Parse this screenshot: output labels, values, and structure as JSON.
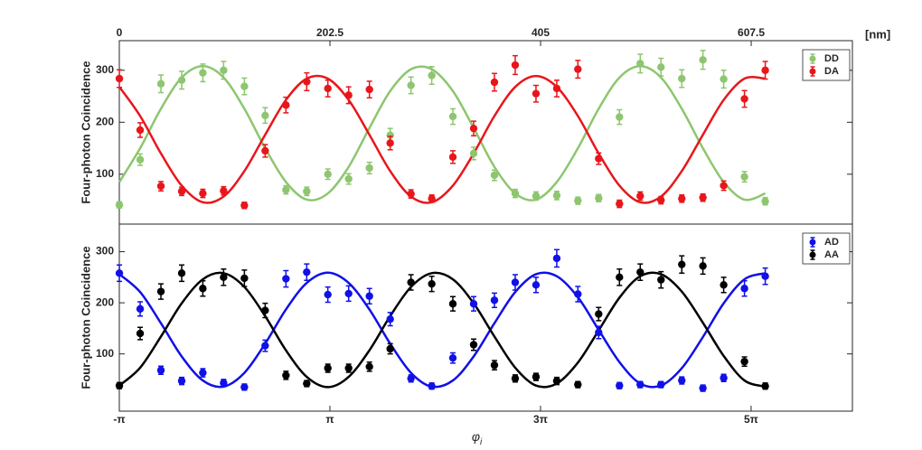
{
  "chart_data": [
    {
      "type": "scatter",
      "ylabel": "Four-photon Coincidence",
      "x": [
        -3.14,
        -2.52,
        -1.9,
        -1.28,
        -0.65,
        -0.03,
        0.59,
        1.21,
        1.83,
        2.45,
        3.08,
        3.7,
        4.32,
        4.94,
        5.56,
        6.18,
        6.81,
        7.43,
        8.05,
        8.67,
        9.29,
        9.91,
        10.54,
        11.16,
        11.78,
        12.4,
        13.02,
        13.64,
        14.27,
        14.89,
        15.51,
        16.13
      ],
      "xlim": [
        -3.1416,
        18.73
      ],
      "x2lim": [
        0,
        704.8
      ],
      "x2ticks": [
        0,
        202.5,
        405,
        607.5
      ],
      "x2label": "[nm]",
      "ylim": [
        4,
        357
      ],
      "yticks": [
        100,
        200,
        300
      ],
      "legend": "upper right",
      "series": [
        {
          "name": "DD",
          "color": "#8dc66f",
          "values": [
            41,
            128,
            274,
            281,
            295,
            300,
            269,
            213,
            70,
            67,
            100,
            91,
            112,
            175,
            271,
            290,
            211,
            140,
            98,
            63,
            58,
            59,
            49,
            54,
            210,
            313,
            306,
            284,
            320,
            283,
            95,
            48
          ],
          "errors": [
            6,
            11,
            17,
            17,
            17,
            17,
            16,
            15,
            8,
            8,
            10,
            10,
            11,
            13,
            16,
            17,
            15,
            12,
            10,
            8,
            8,
            8,
            7,
            7,
            14,
            18,
            17,
            17,
            18,
            17,
            10,
            7
          ],
          "fit": [
            85,
            150,
            226,
            286,
            308,
            286,
            226,
            150,
            85,
            51,
            63,
            114,
            189,
            260,
            302,
            302,
            260,
            189,
            114,
            63,
            51,
            85,
            150,
            226,
            286,
            308,
            286,
            226,
            150,
            85,
            51,
            63
          ]
        },
        {
          "name": "DA",
          "color": "#e8161b",
          "values": [
            284,
            185,
            77,
            67,
            63,
            68,
            40,
            145,
            233,
            278,
            265,
            252,
            263,
            160,
            62,
            53,
            133,
            188,
            277,
            310,
            255,
            265,
            302,
            130,
            43,
            58,
            50,
            53,
            55,
            78,
            245,
            300
          ],
          "errors": [
            17,
            14,
            9,
            8,
            8,
            8,
            6,
            12,
            15,
            17,
            16,
            16,
            16,
            13,
            8,
            7,
            12,
            14,
            17,
            18,
            16,
            16,
            17,
            11,
            7,
            8,
            7,
            7,
            7,
            9,
            16,
            17
          ],
          "fit": [
            268,
            212,
            140,
            78,
            46,
            57,
            106,
            176,
            243,
            284,
            284,
            243,
            176,
            106,
            57,
            46,
            78,
            140,
            212,
            268,
            289,
            268,
            212,
            140,
            78,
            46,
            57,
            106,
            176,
            243,
            284,
            284
          ]
        }
      ]
    },
    {
      "type": "scatter",
      "ylabel": "Four-photon Coincidence",
      "x": [
        -3.14,
        -2.52,
        -1.9,
        -1.28,
        -0.65,
        -0.03,
        0.59,
        1.21,
        1.83,
        2.45,
        3.08,
        3.7,
        4.32,
        4.94,
        5.56,
        6.18,
        6.81,
        7.43,
        8.05,
        8.67,
        9.29,
        9.91,
        10.54,
        11.16,
        11.78,
        12.4,
        13.02,
        13.64,
        14.27,
        14.89,
        15.51,
        16.13
      ],
      "xlim": [
        -3.1416,
        18.73
      ],
      "xticks": [
        {
          "value": -3.1416,
          "label": "-π"
        },
        {
          "value": 3.1416,
          "label": "π"
        },
        {
          "value": 9.4248,
          "label": "3π"
        },
        {
          "value": 15.708,
          "label": "5π"
        }
      ],
      "xlabel": {
        "symbol": "φ",
        "subscript": "i"
      },
      "ylim": [
        -12,
        354
      ],
      "yticks": [
        100,
        200,
        300
      ],
      "legend": "upper right",
      "series": [
        {
          "name": "AD",
          "color": "#1010e8",
          "values": [
            258,
            188,
            68,
            47,
            63,
            43,
            35,
            116,
            247,
            260,
            216,
            218,
            213,
            168,
            52,
            37,
            92,
            198,
            205,
            240,
            235,
            287,
            217,
            142,
            38,
            40,
            40,
            48,
            33,
            53,
            228,
            252
          ],
          "errors": [
            16,
            14,
            8,
            7,
            8,
            7,
            6,
            11,
            16,
            16,
            15,
            15,
            15,
            13,
            7,
            6,
            10,
            14,
            14,
            15,
            15,
            17,
            15,
            12,
            6,
            6,
            6,
            7,
            6,
            7,
            15,
            16
          ],
          "fit": [
            256,
            221,
            160,
            95,
            48,
            36,
            63,
            120,
            187,
            239,
            259,
            239,
            187,
            120,
            63,
            36,
            48,
            95,
            160,
            221,
            256,
            252,
            211,
            147,
            84,
            42,
            38,
            72,
            133,
            199,
            246,
            258
          ]
        },
        {
          "name": "AA",
          "color": "#000000",
          "values": [
            38,
            140,
            222,
            258,
            228,
            250,
            248,
            185,
            58,
            42,
            72,
            72,
            75,
            110,
            240,
            237,
            198,
            118,
            78,
            52,
            55,
            47,
            40,
            178,
            250,
            260,
            245,
            275,
            272,
            235,
            85,
            37
          ],
          "errors": [
            6,
            12,
            15,
            16,
            15,
            16,
            16,
            14,
            8,
            6,
            8,
            8,
            9,
            10,
            15,
            15,
            14,
            11,
            9,
            7,
            7,
            7,
            6,
            13,
            16,
            16,
            16,
            17,
            16,
            15,
            9,
            6
          ],
          "fit": [
            38,
            73,
            134,
            199,
            246,
            258,
            231,
            174,
            107,
            55,
            35,
            55,
            107,
            174,
            231,
            258,
            246,
            199,
            134,
            73,
            38,
            42,
            83,
            146,
            210,
            252,
            256,
            222,
            161,
            96,
            48,
            36
          ]
        }
      ]
    }
  ]
}
